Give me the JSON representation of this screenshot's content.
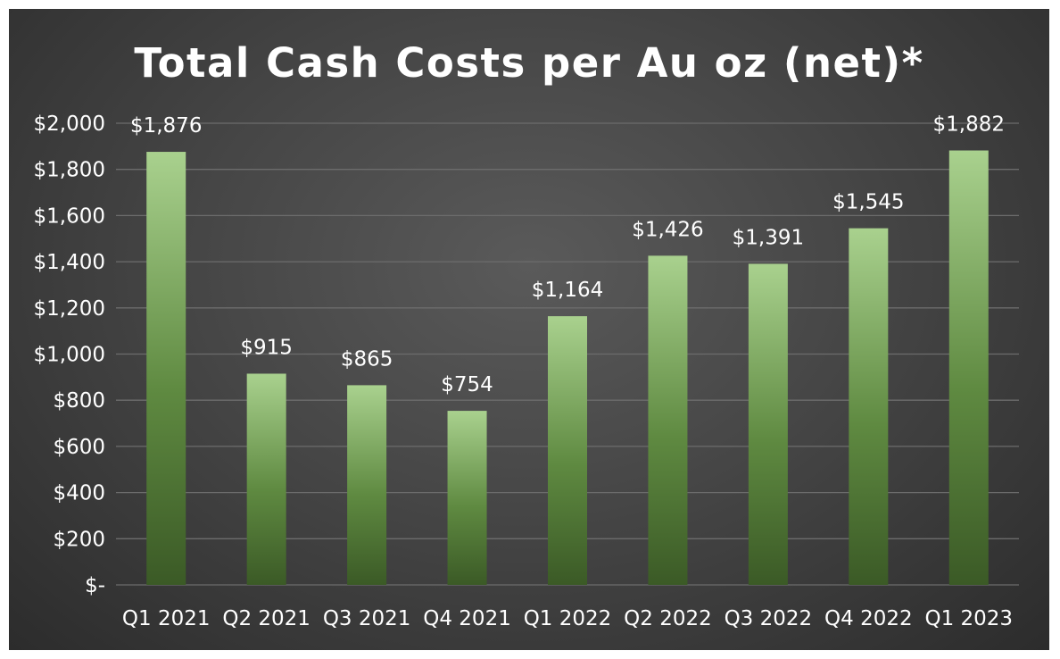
{
  "chart_data": {
    "type": "bar",
    "title": "Total Cash Costs per Au oz (net)*",
    "xlabel": "",
    "ylabel": "",
    "categories": [
      "Q1 2021",
      "Q2 2021",
      "Q3 2021",
      "Q4 2021",
      "Q1 2022",
      "Q2 2022",
      "Q3 2022",
      "Q4 2022",
      "Q1 2023"
    ],
    "values": [
      1876,
      915,
      865,
      754,
      1164,
      1426,
      1391,
      1545,
      1882
    ],
    "data_labels": [
      "$1,876",
      "$915",
      "$865",
      "$754",
      "$1,164",
      "$1,426",
      "$1,391",
      "$1,545",
      "$1,882"
    ],
    "ylim": [
      0,
      2000
    ],
    "yticks": [
      0,
      200,
      400,
      600,
      800,
      1000,
      1200,
      1400,
      1600,
      1800,
      2000
    ],
    "ytick_labels": [
      "$-",
      "$200",
      "$400",
      "$600",
      "$800",
      "$1,000",
      "$1,200",
      "$1,400",
      "$1,600",
      "$1,800",
      "$2,000"
    ],
    "grid": true,
    "legend": "none",
    "colors": {
      "bar_top": "#a9d18e",
      "bar_bottom": "#3b5a26",
      "background": "#4a4a4a",
      "text": "#ffffff",
      "grid": "#6c6c6c"
    }
  }
}
